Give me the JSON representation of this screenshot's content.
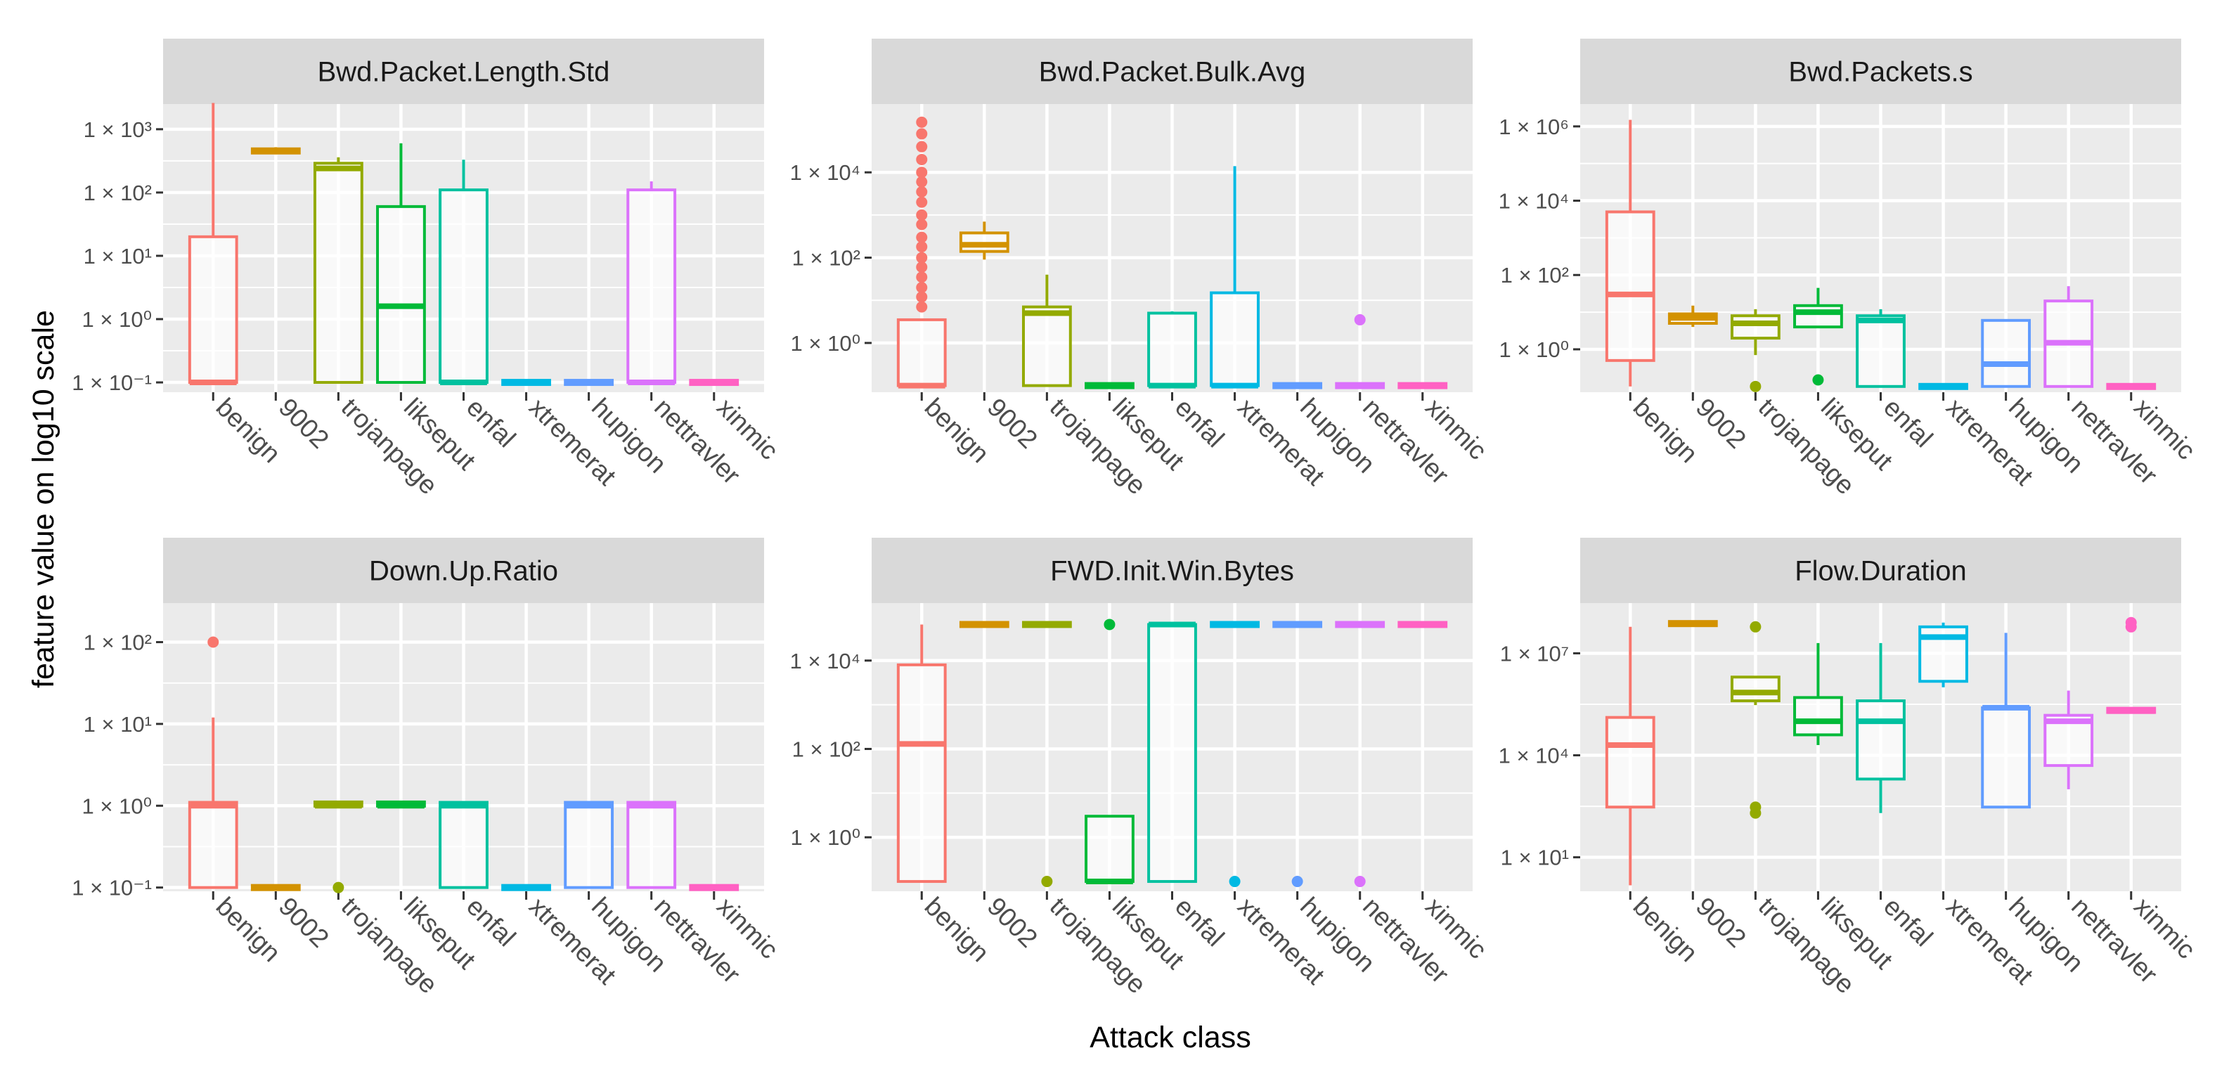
{
  "chart_data": {
    "type": "boxplot",
    "xlabel": "Attack class",
    "ylabel": "feature value on log10 scale",
    "scale": "log10",
    "categories": [
      "benign",
      "9002",
      "trojanpage",
      "likseput",
      "enfal",
      "xtremerat",
      "hupigon",
      "nettravler",
      "xinmic"
    ],
    "colors": {
      "benign": "#F8766D",
      "9002": "#D39200",
      "trojanpage": "#93AA00",
      "likseput": "#00BA38",
      "enfal": "#00C19F",
      "xtremerat": "#00B9E3",
      "hupigon": "#619CFF",
      "nettravler": "#DB72FB",
      "xinmic": "#FF61C3"
    },
    "panels": [
      {
        "title": "Bwd.Packet.Length.Std",
        "ylim": [
          0.07,
          2500
        ],
        "ticks": [
          {
            "value": 0.1,
            "label": "1 × 10⁻¹"
          },
          {
            "value": 1,
            "label": "1 × 10⁰"
          },
          {
            "value": 10,
            "label": "1 × 10¹"
          },
          {
            "value": 100,
            "label": "1 × 10²"
          },
          {
            "value": 1000,
            "label": "1 × 10³"
          }
        ],
        "boxes": [
          {
            "cat": "benign",
            "low": 0.1,
            "q1": 0.1,
            "median": 0.1,
            "q3": 20,
            "high": 2600,
            "outliers": []
          },
          {
            "cat": "9002",
            "low": 400,
            "q1": 420,
            "median": 450,
            "q3": 490,
            "high": 520,
            "outliers": []
          },
          {
            "cat": "trojanpage",
            "low": 0.1,
            "q1": 0.1,
            "median": 240,
            "q3": 290,
            "high": 360,
            "outliers": []
          },
          {
            "cat": "likseput",
            "low": 0.1,
            "q1": 0.1,
            "median": 1.6,
            "q3": 60,
            "high": 600,
            "outliers": []
          },
          {
            "cat": "enfal",
            "low": 0.1,
            "q1": 0.1,
            "median": 0.1,
            "q3": 110,
            "high": 330,
            "outliers": []
          },
          {
            "cat": "xtremerat",
            "low": 0.1,
            "q1": 0.1,
            "median": 0.1,
            "q3": 0.1,
            "high": 0.1,
            "outliers": []
          },
          {
            "cat": "hupigon",
            "low": 0.1,
            "q1": 0.1,
            "median": 0.1,
            "q3": 0.1,
            "high": 0.1,
            "outliers": []
          },
          {
            "cat": "nettravler",
            "low": 0.1,
            "q1": 0.1,
            "median": 0.1,
            "q3": 110,
            "high": 150,
            "outliers": []
          },
          {
            "cat": "xinmic",
            "low": 0.1,
            "q1": 0.1,
            "median": 0.1,
            "q3": 0.1,
            "high": 0.1,
            "outliers": []
          }
        ]
      },
      {
        "title": "Bwd.Packet.Bulk.Avg",
        "ylim": [
          0.07,
          400000
        ],
        "ticks": [
          {
            "value": 1,
            "label": "1 × 10⁰"
          },
          {
            "value": 100,
            "label": "1 × 10²"
          },
          {
            "value": 10000,
            "label": "1 × 10⁴"
          }
        ],
        "boxes": [
          {
            "cat": "benign",
            "low": 0.1,
            "q1": 0.1,
            "median": 0.1,
            "q3": 3.5,
            "high": 3.5,
            "outliers": [
              7,
              12,
              20,
              35,
              60,
              100,
              180,
              300,
              600,
              1000,
              2000,
              3500,
              6000,
              10000,
              20000,
              40000,
              80000,
              150000
            ]
          },
          {
            "cat": "9002",
            "low": 90,
            "q1": 140,
            "median": 200,
            "q3": 380,
            "high": 700,
            "outliers": []
          },
          {
            "cat": "trojanpage",
            "low": 0.1,
            "q1": 0.1,
            "median": 5,
            "q3": 7,
            "high": 40,
            "outliers": []
          },
          {
            "cat": "likseput",
            "low": 0.1,
            "q1": 0.1,
            "median": 0.1,
            "q3": 0.1,
            "high": 0.1,
            "outliers": []
          },
          {
            "cat": "enfal",
            "low": 0.1,
            "q1": 0.1,
            "median": 0.1,
            "q3": 5,
            "high": 5.5,
            "outliers": []
          },
          {
            "cat": "xtremerat",
            "low": 0.1,
            "q1": 0.1,
            "median": 0.1,
            "q3": 15,
            "high": 14000,
            "outliers": []
          },
          {
            "cat": "hupigon",
            "low": 0.1,
            "q1": 0.1,
            "median": 0.1,
            "q3": 0.1,
            "high": 0.1,
            "outliers": []
          },
          {
            "cat": "nettravler",
            "low": 0.1,
            "q1": 0.1,
            "median": 0.1,
            "q3": 0.1,
            "high": 0.1,
            "outliers": [
              3.5
            ]
          },
          {
            "cat": "xinmic",
            "low": 0.1,
            "q1": 0.1,
            "median": 0.1,
            "q3": 0.1,
            "high": 0.1,
            "outliers": []
          }
        ]
      },
      {
        "title": "Bwd.Packets.s",
        "ylim": [
          0.07,
          4000000
        ],
        "ticks": [
          {
            "value": 1,
            "label": "1 × 10⁰"
          },
          {
            "value": 100,
            "label": "1 × 10²"
          },
          {
            "value": 10000,
            "label": "1 × 10⁴"
          },
          {
            "value": 1000000,
            "label": "1 × 10⁶"
          }
        ],
        "boxes": [
          {
            "cat": "benign",
            "low": 0.1,
            "q1": 0.5,
            "median": 30,
            "q3": 5000,
            "high": 1500000,
            "outliers": []
          },
          {
            "cat": "9002",
            "low": 4,
            "q1": 5,
            "median": 7,
            "q3": 9,
            "high": 15,
            "outliers": []
          },
          {
            "cat": "trojanpage",
            "low": 0.7,
            "q1": 2,
            "median": 5,
            "q3": 8,
            "high": 12,
            "outliers": [
              0.1
            ]
          },
          {
            "cat": "likseput",
            "low": 4,
            "q1": 4,
            "median": 10,
            "q3": 15,
            "high": 45,
            "outliers": [
              0.15
            ]
          },
          {
            "cat": "enfal",
            "low": 0.1,
            "q1": 0.1,
            "median": 6,
            "q3": 8,
            "high": 12,
            "outliers": []
          },
          {
            "cat": "xtremerat",
            "low": 0.1,
            "q1": 0.1,
            "median": 0.1,
            "q3": 0.1,
            "high": 0.1,
            "outliers": []
          },
          {
            "cat": "hupigon",
            "low": 0.1,
            "q1": 0.1,
            "median": 0.4,
            "q3": 6,
            "high": 6,
            "outliers": []
          },
          {
            "cat": "nettravler",
            "low": 0.1,
            "q1": 0.1,
            "median": 1.5,
            "q3": 20,
            "high": 50,
            "outliers": []
          },
          {
            "cat": "xinmic",
            "low": 0.1,
            "q1": 0.1,
            "median": 0.1,
            "q3": 0.1,
            "high": 0.1,
            "outliers": []
          }
        ]
      },
      {
        "title": "Down.Up.Ratio",
        "ylim": [
          0.09,
          300
        ],
        "ticks": [
          {
            "value": 0.1,
            "label": "1 × 10⁻¹"
          },
          {
            "value": 1,
            "label": "1 × 10⁰"
          },
          {
            "value": 10,
            "label": "1 × 10¹"
          },
          {
            "value": 100,
            "label": "1 × 10²"
          }
        ],
        "boxes": [
          {
            "cat": "benign",
            "low": 0.1,
            "q1": 0.1,
            "median": 1,
            "q3": 1.1,
            "high": 12,
            "outliers": [
              100
            ]
          },
          {
            "cat": "9002",
            "low": 0.1,
            "q1": 0.1,
            "median": 0.1,
            "q3": 0.1,
            "high": 0.1,
            "outliers": []
          },
          {
            "cat": "trojanpage",
            "low": 1,
            "q1": 1,
            "median": 1,
            "q3": 1.1,
            "high": 1.1,
            "outliers": [
              0.1
            ]
          },
          {
            "cat": "likseput",
            "low": 1,
            "q1": 1,
            "median": 1,
            "q3": 1.1,
            "high": 1.1,
            "outliers": []
          },
          {
            "cat": "enfal",
            "low": 0.1,
            "q1": 0.1,
            "median": 1,
            "q3": 1.1,
            "high": 1.1,
            "outliers": []
          },
          {
            "cat": "xtremerat",
            "low": 0.1,
            "q1": 0.1,
            "median": 0.1,
            "q3": 0.1,
            "high": 0.1,
            "outliers": []
          },
          {
            "cat": "hupigon",
            "low": 0.1,
            "q1": 0.1,
            "median": 1,
            "q3": 1.1,
            "high": 1.1,
            "outliers": []
          },
          {
            "cat": "nettravler",
            "low": 0.1,
            "q1": 0.1,
            "median": 1,
            "q3": 1.1,
            "high": 1.1,
            "outliers": []
          },
          {
            "cat": "xinmic",
            "low": 0.1,
            "q1": 0.1,
            "median": 0.1,
            "q3": 0.1,
            "high": 0.1,
            "outliers": []
          }
        ]
      },
      {
        "title": "FWD.Init.Win.Bytes",
        "ylim": [
          0.06,
          200000
        ],
        "ticks": [
          {
            "value": 1,
            "label": "1 × 10⁰"
          },
          {
            "value": 100,
            "label": "1 × 10²"
          },
          {
            "value": 10000,
            "label": "1 × 10⁴"
          }
        ],
        "boxes": [
          {
            "cat": "benign",
            "low": 0.1,
            "q1": 0.1,
            "median": 130,
            "q3": 8000,
            "high": 65535,
            "outliers": []
          },
          {
            "cat": "9002",
            "low": 65535,
            "q1": 65535,
            "median": 65535,
            "q3": 65535,
            "high": 65535,
            "outliers": []
          },
          {
            "cat": "trojanpage",
            "low": 65535,
            "q1": 65535,
            "median": 65535,
            "q3": 65535,
            "high": 65535,
            "outliers": [
              0.1
            ]
          },
          {
            "cat": "likseput",
            "low": 0.1,
            "q1": 0.1,
            "median": 0.1,
            "q3": 3,
            "high": 3,
            "outliers": [
              65535
            ]
          },
          {
            "cat": "enfal",
            "low": 0.1,
            "q1": 0.1,
            "median": 65535,
            "q3": 65535,
            "high": 65535,
            "outliers": []
          },
          {
            "cat": "xtremerat",
            "low": 65535,
            "q1": 65535,
            "median": 65535,
            "q3": 65535,
            "high": 65535,
            "outliers": [
              0.1
            ]
          },
          {
            "cat": "hupigon",
            "low": 65535,
            "q1": 65535,
            "median": 65535,
            "q3": 65535,
            "high": 65535,
            "outliers": [
              0.1
            ]
          },
          {
            "cat": "nettravler",
            "low": 65535,
            "q1": 65535,
            "median": 65535,
            "q3": 65535,
            "high": 65535,
            "outliers": [
              0.1
            ]
          },
          {
            "cat": "xinmic",
            "low": 65535,
            "q1": 65535,
            "median": 65535,
            "q3": 65535,
            "high": 65535,
            "outliers": []
          }
        ]
      },
      {
        "title": "Flow.Duration",
        "ylim": [
          1,
          300000000
        ],
        "ticks": [
          {
            "value": 10,
            "label": "1 × 10¹"
          },
          {
            "value": 10000,
            "label": "1 × 10⁴"
          },
          {
            "value": 10000000,
            "label": "1 × 10⁷"
          }
        ],
        "boxes": [
          {
            "cat": "benign",
            "low": 1.5,
            "q1": 300,
            "median": 20000,
            "q3": 130000,
            "high": 60000000,
            "outliers": []
          },
          {
            "cat": "9002",
            "low": 70000000,
            "q1": 70000000,
            "median": 75000000,
            "q3": 80000000,
            "high": 80000000,
            "outliers": []
          },
          {
            "cat": "trojanpage",
            "low": 300000,
            "q1": 400000,
            "median": 700000,
            "q3": 2000000,
            "high": 2000000,
            "outliers": [
              200,
              300,
              60000000
            ]
          },
          {
            "cat": "likseput",
            "low": 20000,
            "q1": 40000,
            "median": 100000,
            "q3": 500000,
            "high": 20000000,
            "outliers": []
          },
          {
            "cat": "enfal",
            "low": 200,
            "q1": 2000,
            "median": 100000,
            "q3": 400000,
            "high": 20000000,
            "outliers": []
          },
          {
            "cat": "xtremerat",
            "low": 1000000,
            "q1": 1500000,
            "median": 30000000,
            "q3": 60000000,
            "high": 80000000,
            "outliers": []
          },
          {
            "cat": "hupigon",
            "low": 300,
            "q1": 300,
            "median": 250000,
            "q3": 250000,
            "high": 40000000,
            "outliers": []
          },
          {
            "cat": "nettravler",
            "low": 1000,
            "q1": 5000,
            "median": 100000,
            "q3": 150000,
            "high": 800000,
            "outliers": []
          },
          {
            "cat": "xinmic",
            "low": 200000,
            "q1": 200000,
            "median": 200000,
            "q3": 220000,
            "high": 220000,
            "outliers": [
              60000000,
              80000000
            ]
          }
        ]
      }
    ]
  }
}
